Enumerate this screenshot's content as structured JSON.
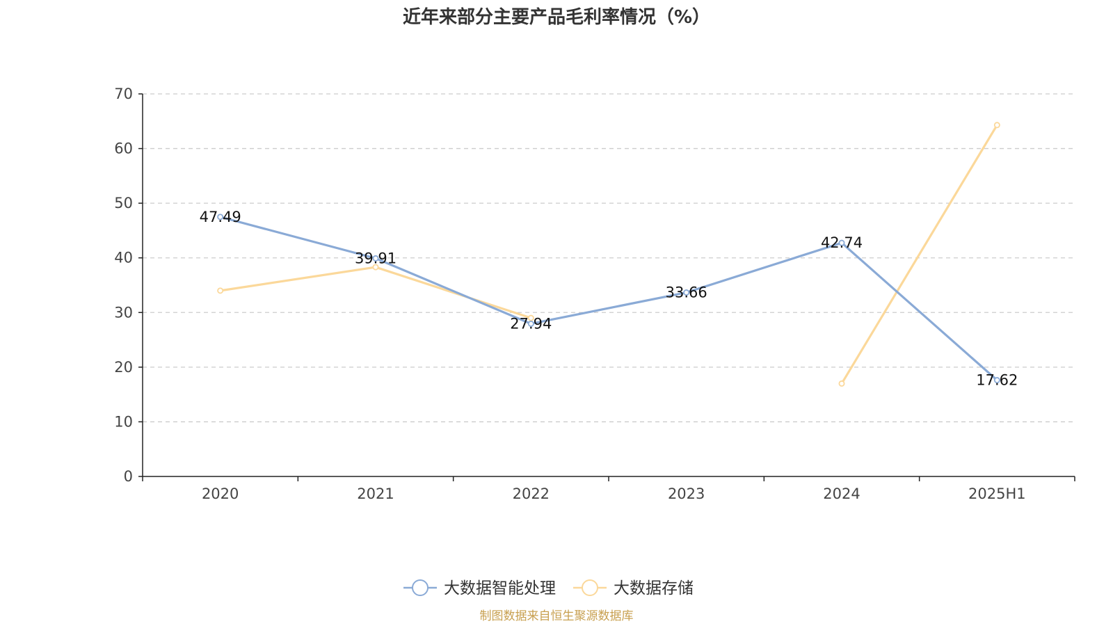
{
  "chart_data": {
    "type": "line",
    "title": "近年来部分主要产品毛利率情况（%）",
    "categories": [
      "2020",
      "2021",
      "2022",
      "2023",
      "2024",
      "2025H1"
    ],
    "ylim": [
      0,
      70
    ],
    "yticks": [
      0,
      10,
      20,
      30,
      40,
      50,
      60,
      70
    ],
    "grid": true,
    "legend_position": "bottom",
    "series": [
      {
        "name": "大数据智能处理",
        "color": "#8aaad6",
        "values": [
          47.49,
          39.91,
          27.94,
          33.66,
          42.74,
          17.62
        ],
        "labels": [
          "47.49",
          "39.91",
          "27.94",
          "33.66",
          "42.74",
          "17.62"
        ]
      },
      {
        "name": "大数据存储",
        "color": "#fbd89a",
        "values": [
          34.0,
          38.3,
          29.0,
          null,
          17.0,
          64.3
        ]
      }
    ]
  },
  "source_note": "制图数据来自恒生聚源数据库"
}
